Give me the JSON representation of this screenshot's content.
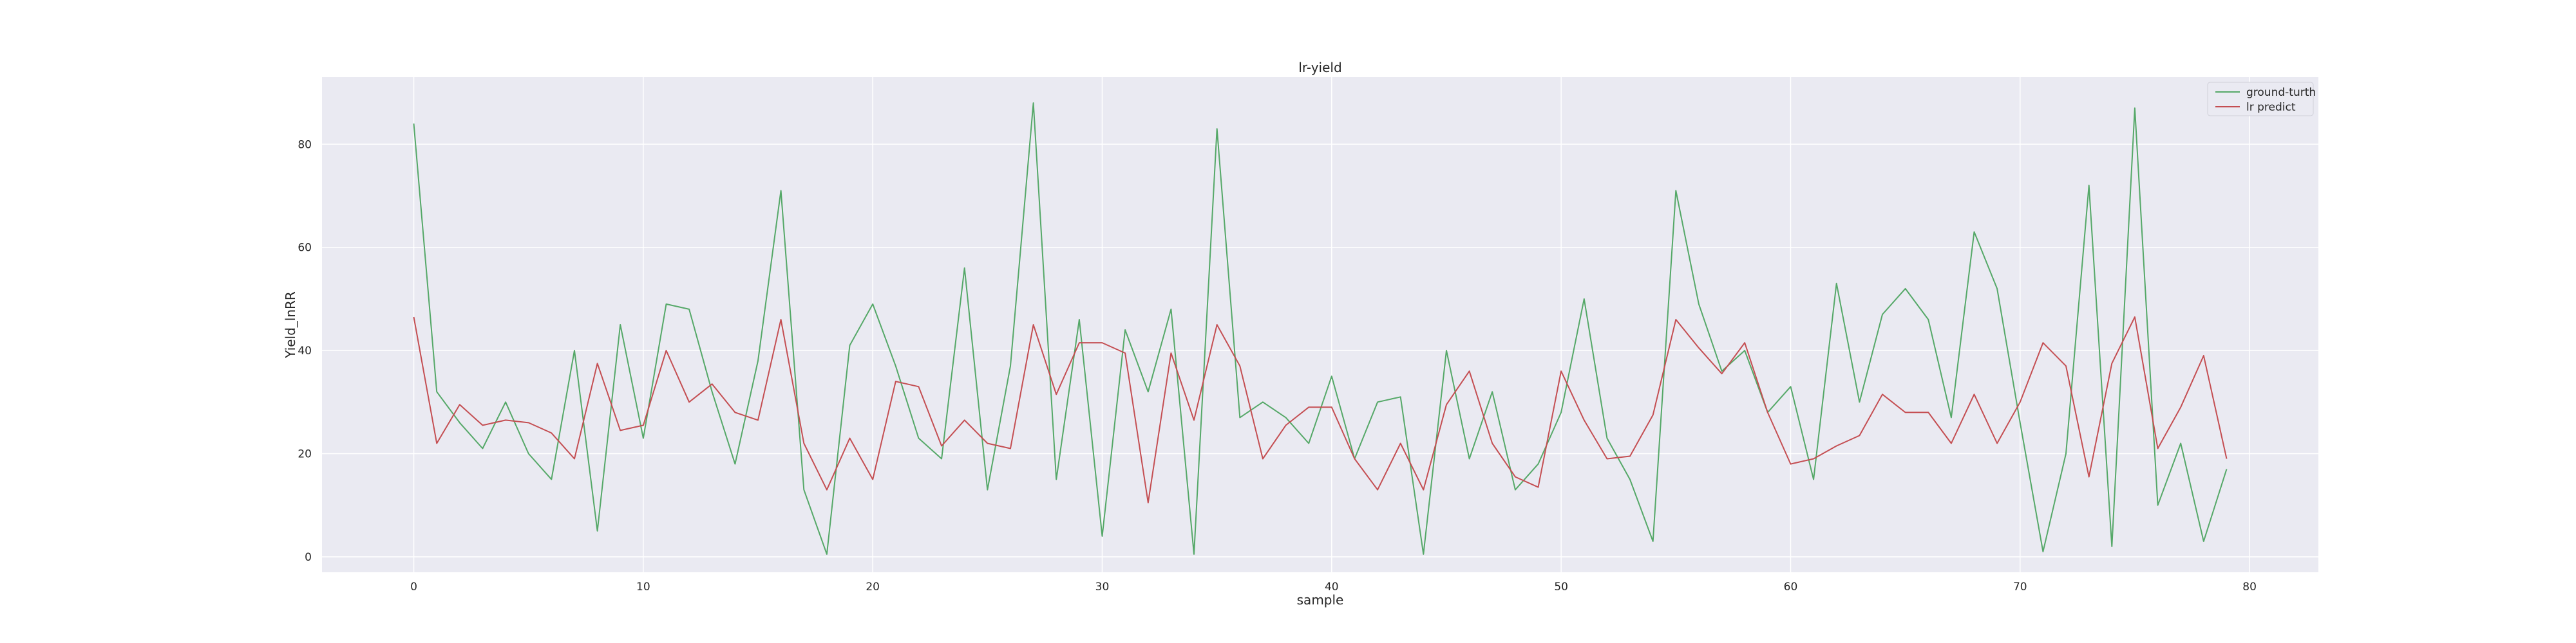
{
  "chart_data": {
    "type": "line",
    "title": "lr-yield",
    "xlabel": "sample",
    "ylabel": "Yield_lnRR",
    "xlim": [
      -4,
      83
    ],
    "ylim": [
      -3,
      93
    ],
    "xticks": [
      0,
      10,
      20,
      30,
      40,
      50,
      60,
      70,
      80
    ],
    "yticks": [
      0,
      20,
      40,
      60,
      80
    ],
    "grid": true,
    "legend_position": "top-right",
    "x": [
      0,
      1,
      2,
      3,
      4,
      5,
      6,
      7,
      8,
      9,
      10,
      11,
      12,
      13,
      14,
      15,
      16,
      17,
      18,
      19,
      20,
      21,
      22,
      23,
      24,
      25,
      26,
      27,
      28,
      29,
      30,
      31,
      32,
      33,
      34,
      35,
      36,
      37,
      38,
      39,
      40,
      41,
      42,
      43,
      44,
      45,
      46,
      47,
      48,
      49,
      50,
      51,
      52,
      53,
      54,
      55,
      56,
      57,
      58,
      59,
      60,
      61,
      62,
      63,
      64,
      65,
      66,
      67,
      68,
      69,
      70,
      71,
      72,
      73,
      74,
      75,
      76,
      77,
      78,
      79
    ],
    "series": [
      {
        "name": "ground-turth",
        "color": "#55a868",
        "values": [
          84,
          32,
          26,
          21,
          30,
          20,
          15,
          40,
          5,
          45,
          23,
          49,
          48,
          32,
          18,
          38,
          71,
          13,
          0.5,
          41,
          49,
          37,
          23,
          19,
          56,
          13,
          37,
          88,
          15,
          46,
          4,
          44,
          32,
          48,
          0.5,
          83,
          27,
          30,
          27,
          22,
          35,
          19,
          30,
          31,
          0.5,
          40,
          19,
          32,
          13,
          18,
          28,
          50,
          23,
          15,
          3,
          71,
          49,
          36,
          40,
          28,
          33,
          15,
          53,
          30,
          47,
          52,
          46,
          27,
          63,
          52,
          26,
          1,
          20,
          72,
          2,
          87,
          10,
          22,
          3,
          17
        ]
      },
      {
        "name": "lr predict",
        "color": "#c44e52",
        "values": [
          46.5,
          22,
          29.5,
          25.5,
          26.5,
          26,
          24,
          19,
          37.5,
          24.5,
          25.5,
          40,
          30,
          33.5,
          28,
          26.5,
          46,
          22,
          13,
          23,
          15,
          34,
          33,
          21.5,
          26.5,
          22,
          21,
          45,
          31.5,
          41.5,
          41.5,
          39.5,
          10.5,
          39.5,
          26.5,
          45,
          37,
          19,
          25.5,
          29,
          29,
          19,
          13,
          22,
          13,
          29.5,
          36,
          22,
          15.5,
          13.5,
          36,
          26.5,
          19,
          19.5,
          27.5,
          46,
          40.5,
          35.5,
          41.5,
          28,
          18,
          19,
          21.5,
          23.5,
          31.5,
          28,
          28,
          22,
          31.5,
          22,
          30,
          41.5,
          37,
          15.5,
          37.5,
          46.5,
          21,
          29,
          39,
          19
        ]
      }
    ]
  }
}
